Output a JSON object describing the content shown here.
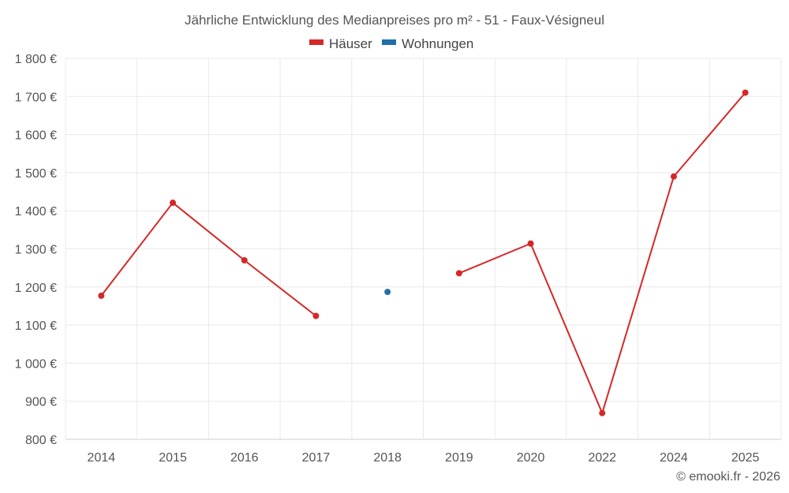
{
  "chart_data": {
    "type": "line",
    "title": "Jährliche Entwicklung des Medianpreises pro m² - 51 - Faux-Vésigneul",
    "categories": [
      "2014",
      "2015",
      "2016",
      "2017",
      "2018",
      "2019",
      "2020",
      "2022",
      "2024",
      "2025"
    ],
    "series": [
      {
        "name": "Häuser",
        "color": "#d62728",
        "values": [
          1177,
          1421,
          1270,
          1124,
          null,
          1236,
          1314,
          869,
          1490,
          1710
        ]
      },
      {
        "name": "Wohnungen",
        "color": "#1f6fa8",
        "values": [
          null,
          null,
          null,
          null,
          1187,
          null,
          null,
          null,
          null,
          null
        ]
      }
    ],
    "ylim": [
      800,
      1800
    ],
    "yticks": [
      800,
      900,
      1000,
      1100,
      1200,
      1300,
      1400,
      1500,
      1600,
      1700,
      1800
    ],
    "ytick_labels": [
      "800 €",
      "900 €",
      "1 000 €",
      "1 100 €",
      "1 200 €",
      "1 300 €",
      "1 400 €",
      "1 500 €",
      "1 600 €",
      "1 700 €",
      "1 800 €"
    ],
    "grid": true,
    "legend": "top-center",
    "xlabel": "",
    "ylabel": ""
  },
  "credit": "© emooki.fr - 2026"
}
